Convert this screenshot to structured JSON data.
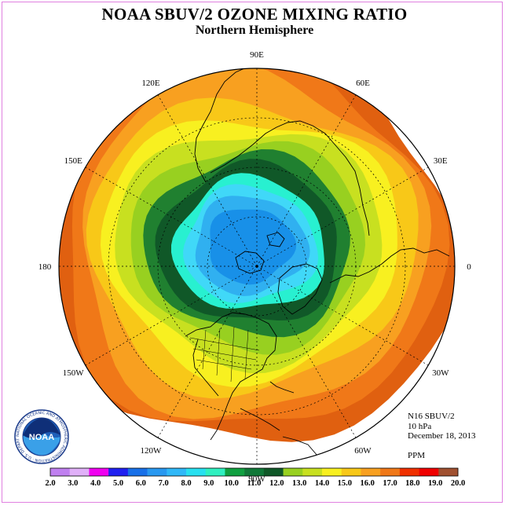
{
  "header": {
    "title": "NOAA SBUV/2 OZONE MIXING RATIO",
    "subtitle": "Northern Hemisphere"
  },
  "map": {
    "projection": "north-polar-stereographic",
    "longitude_labels": [
      "90E",
      "60E",
      "30E",
      "0",
      "30W",
      "60W",
      "90W",
      "120W",
      "150W",
      "180",
      "150E",
      "120E"
    ],
    "field_colors_outer_to_inner": [
      "#e06010",
      "#f07818",
      "#f8a020",
      "#f8c818",
      "#f8f020",
      "#c8e020",
      "#98d020",
      "#208030",
      "#105828",
      "#28f0d0",
      "#40d8f8",
      "#30b0f0",
      "#1890e8"
    ]
  },
  "info": {
    "instrument": "N16 SBUV/2",
    "level": "10 hPa",
    "date": "December 18, 2013",
    "units": "PPM"
  },
  "logo": {
    "text": "NOAA",
    "ring_text": "NATIONAL OCEANIC AND ATMOSPHERIC ADMINISTRATION · U.S. DEPARTMENT OF COMMERCE"
  },
  "colorbar": {
    "labels": [
      "2.0",
      "3.0",
      "4.0",
      "5.0",
      "6.0",
      "7.0",
      "8.0",
      "9.0",
      "10.0",
      "11.0",
      "12.0",
      "13.0",
      "14.0",
      "15.0",
      "16.0",
      "17.0",
      "18.0",
      "19.0",
      "20.0"
    ],
    "colors": [
      "#c080f0",
      "#e0b0f8",
      "#f000f0",
      "#2020f0",
      "#1870e8",
      "#2898f0",
      "#30b8f8",
      "#28e0f0",
      "#30f0c0",
      "#10a040",
      "#107838",
      "#105828",
      "#98d020",
      "#c8e020",
      "#f8f020",
      "#f8c818",
      "#f8a020",
      "#f07818",
      "#f03000",
      "#f00000",
      "#a05030"
    ]
  }
}
